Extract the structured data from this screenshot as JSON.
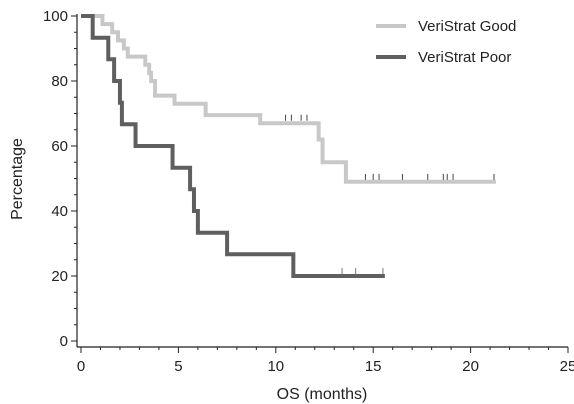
{
  "chart_data": {
    "type": "line",
    "subtype": "kaplan-meier step",
    "title": "",
    "xlabel": "OS (months)",
    "ylabel": "Percentage",
    "xlim": [
      0,
      25
    ],
    "ylim": [
      0,
      100
    ],
    "xticks": [
      "0",
      "5",
      "10",
      "15",
      "20",
      "25"
    ],
    "yticks": [
      "0",
      "20",
      "40",
      "60",
      "80",
      "100"
    ],
    "grid": false,
    "legend_position": "top-right",
    "series": [
      {
        "name": "VeriStrat Good",
        "color": "#c8c8c8",
        "steps": [
          [
            0,
            100
          ],
          [
            0.8,
            100
          ],
          [
            1.1,
            97.5
          ],
          [
            1.6,
            95
          ],
          [
            1.9,
            92.5
          ],
          [
            2.2,
            90
          ],
          [
            2.4,
            87.5
          ],
          [
            3.3,
            85
          ],
          [
            3.5,
            82.5
          ],
          [
            3.6,
            80
          ],
          [
            3.8,
            75.5
          ],
          [
            4.8,
            73
          ],
          [
            6.4,
            69.5
          ],
          [
            9.2,
            67
          ],
          [
            12.2,
            62
          ],
          [
            12.4,
            55
          ],
          [
            13.6,
            49
          ],
          [
            21.3,
            49
          ]
        ],
        "censored": [
          [
            10.5,
            68.7
          ],
          [
            10.8,
            68.7
          ],
          [
            11.3,
            68.7
          ],
          [
            11.6,
            68.7
          ],
          [
            14.6,
            50.5
          ],
          [
            15.0,
            50.5
          ],
          [
            15.3,
            50.5
          ],
          [
            16.5,
            50.5
          ],
          [
            17.8,
            50.5
          ],
          [
            18.6,
            50.5
          ],
          [
            18.8,
            50.5
          ],
          [
            19.1,
            50.5
          ],
          [
            21.2,
            50.5
          ]
        ]
      },
      {
        "name": "VeriStrat Poor",
        "color": "#5f5f5f",
        "steps": [
          [
            0,
            100
          ],
          [
            0.6,
            93.3
          ],
          [
            1.4,
            86.7
          ],
          [
            1.7,
            80
          ],
          [
            2.0,
            73.3
          ],
          [
            2.1,
            66.7
          ],
          [
            2.8,
            60
          ],
          [
            4.7,
            53.3
          ],
          [
            5.6,
            46.7
          ],
          [
            5.8,
            40
          ],
          [
            6.0,
            33.3
          ],
          [
            7.5,
            26.7
          ],
          [
            10.9,
            20
          ],
          [
            15.6,
            20
          ]
        ],
        "censored": [
          [
            13.4,
            21.5
          ],
          [
            14.1,
            21.5
          ],
          [
            15.5,
            21.5
          ]
        ]
      }
    ]
  }
}
